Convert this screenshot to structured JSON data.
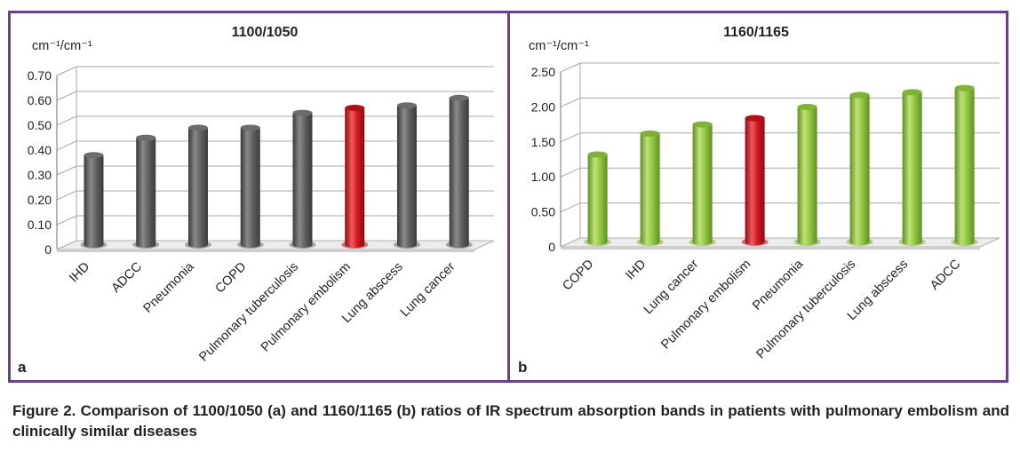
{
  "caption": "Figure 2. Comparison of 1100/1050 (a) and 1160/1165 (b) ratios of IR spectrum absorption bands in patients with pulmonary embolism and clinically similar diseases",
  "colors": {
    "frame": "#6a3f8c",
    "gray_bar": "#555555",
    "red_bar": "#c0141c",
    "green_bar": "#8cbf3c"
  },
  "chart_data": [
    {
      "panel_label": "a",
      "type": "bar",
      "title": "1100/1050",
      "ylabel": "cm⁻¹/cm⁻¹",
      "ylim": [
        0,
        0.7
      ],
      "yticks": [
        "0",
        "0.10",
        "0.20",
        "0.30",
        "0.40",
        "0.50",
        "0.60",
        "0.70"
      ],
      "grid": true,
      "style": "3d-cylinder",
      "categories": [
        "IHD",
        "ADCC",
        "Pneumonia",
        "COPD",
        "Pulmonary tuberculosis",
        "Pulmonary embolism",
        "Lung abscess",
        "Lung cancer"
      ],
      "values": [
        0.36,
        0.43,
        0.47,
        0.47,
        0.53,
        0.55,
        0.56,
        0.59
      ],
      "highlight": "Pulmonary embolism",
      "bar_color": "gray",
      "highlight_color": "red"
    },
    {
      "panel_label": "b",
      "type": "bar",
      "title": "1160/1165",
      "ylabel": "cm⁻¹/cm⁻¹",
      "ylim": [
        0,
        2.5
      ],
      "yticks": [
        "0",
        "0.50",
        "1.00",
        "1.50",
        "2.00",
        "2.50"
      ],
      "grid": true,
      "style": "3d-cylinder",
      "categories": [
        "COPD",
        "IHD",
        "Lung cancer",
        "Pulmonary embolism",
        "Pneumonia",
        "Pulmonary tuberculosis",
        "Lung abscess",
        "ADCC"
      ],
      "values": [
        1.25,
        1.55,
        1.68,
        1.77,
        1.93,
        2.1,
        2.14,
        2.2
      ],
      "highlight": "Pulmonary embolism",
      "bar_color": "green",
      "highlight_color": "red"
    }
  ]
}
